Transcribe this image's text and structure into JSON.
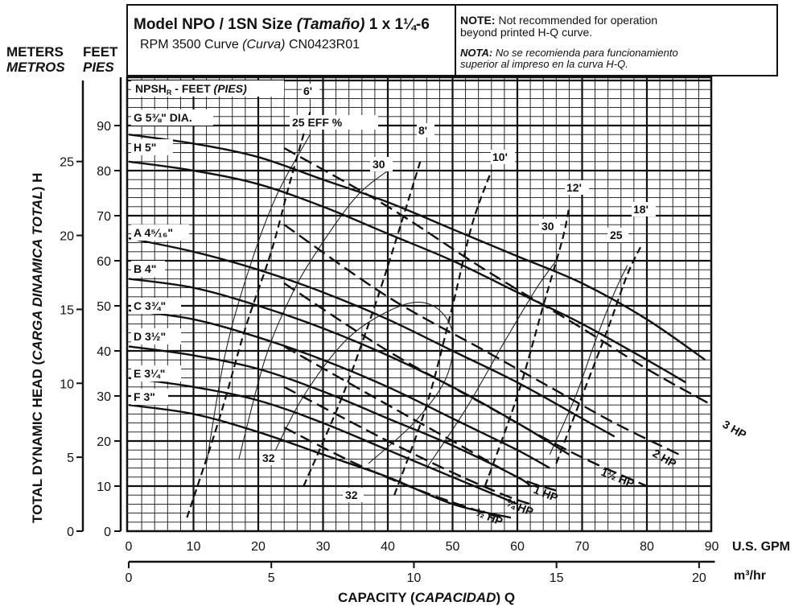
{
  "header": {
    "model_line_a": "Model NPO / 1SN Size ",
    "model_line_b": "(Tamaño)",
    "model_line_c": " 1 x 1¼-6",
    "rpm_line_a": "RPM 3500 Curve ",
    "rpm_line_b": "(Curva)",
    "rpm_line_c": " CN0423R01",
    "note_label": "NOTE:",
    "note_1": " Not recommended for operation",
    "note_2": "beyond printed H-Q curve.",
    "nota_label": "NOTA:",
    "nota_1": " No se recomienda para funcionamiento",
    "nota_2": "superior al impreso en la curva H-Q."
  },
  "axis_titles": {
    "meters": "METERS",
    "feet": "FEET",
    "metros": "METROS",
    "pies": "PIES",
    "y_title_a": "TOTAL DYNAMIC HEAD (",
    "y_title_b": "CARGA DINAMICA TOTAL",
    "y_title_c": ") H",
    "gpm_unit": "U.S. GPM",
    "m3_unit": "m³/hr",
    "x_title_a": "CAPACITY (",
    "x_title_b": "CAPACIDAD",
    "x_title_c": ") Q"
  },
  "chart_data": {
    "type": "line",
    "title": "Model NPO / 1SN Size (Tamaño) 1 x 1¼-6",
    "x_unit": "U.S. GPM",
    "y_unit": "FEET",
    "xlim": [
      0,
      90
    ],
    "ylim": [
      0,
      100
    ],
    "x_ticks": [
      0,
      10,
      20,
      30,
      40,
      50,
      60,
      70,
      80,
      90
    ],
    "y_ticks_feet": [
      0,
      10,
      20,
      30,
      40,
      50,
      60,
      70,
      80,
      90
    ],
    "y_ticks_meters": [
      0,
      5,
      10,
      15,
      20,
      25
    ],
    "x_ticks_m3hr": [
      0,
      5,
      10,
      15,
      20
    ],
    "grid": true,
    "impeller_curves": [
      {
        "label": "G 5⅜\" DIA.",
        "style": "solid",
        "x": [
          0,
          10,
          20,
          30,
          40,
          50,
          60,
          70,
          80,
          89
        ],
        "y": [
          88,
          86,
          83,
          78,
          73,
          67,
          61,
          55,
          47,
          38
        ]
      },
      {
        "label": "H 5\"",
        "style": "solid",
        "x": [
          0,
          10,
          20,
          30,
          40,
          50,
          60,
          70,
          80,
          86
        ],
        "y": [
          82,
          80,
          77,
          72,
          66,
          60,
          53,
          46,
          38,
          33
        ]
      },
      {
        "label": "A 4⁵⁄₁₆\"",
        "style": "solid",
        "x": [
          0,
          10,
          20,
          30,
          40,
          50,
          60,
          70,
          75
        ],
        "y": [
          65,
          62,
          58,
          53,
          47,
          40,
          33,
          25,
          21
        ]
      },
      {
        "label": "B 4\"",
        "style": "solid",
        "x": [
          0,
          10,
          20,
          30,
          40,
          50,
          60,
          68
        ],
        "y": [
          56,
          54,
          50,
          45,
          39,
          32,
          24,
          17
        ]
      },
      {
        "label": "C 3¾\"",
        "style": "solid",
        "x": [
          0,
          10,
          20,
          30,
          40,
          50,
          60,
          65
        ],
        "y": [
          49,
          47,
          43,
          38,
          32,
          25,
          18,
          14
        ]
      },
      {
        "label": "D 3½\"",
        "style": "solid",
        "x": [
          0,
          10,
          20,
          30,
          40,
          50,
          60,
          62
        ],
        "y": [
          41,
          39,
          36,
          31,
          25,
          19,
          12,
          10
        ]
      },
      {
        "label": "E 3¼\"",
        "style": "solid",
        "x": [
          0,
          10,
          20,
          30,
          40,
          50,
          60
        ],
        "y": [
          34,
          32,
          29,
          24,
          18,
          12,
          6
        ]
      },
      {
        "label": "F 3\"",
        "style": "solid",
        "x": [
          0,
          10,
          20,
          30,
          40,
          50,
          59
        ],
        "y": [
          28,
          26,
          22,
          17,
          12,
          6,
          3
        ]
      }
    ],
    "hp_curves": [
      {
        "label": "3 HP",
        "x": [
          24,
          40,
          55,
          70,
          80,
          90
        ],
        "y": [
          85,
          72,
          58,
          45,
          36,
          28
        ]
      },
      {
        "label": "2 HP",
        "x": [
          24,
          40,
          55,
          65,
          75,
          85
        ],
        "y": [
          68,
          52,
          40,
          32,
          24,
          17
        ]
      },
      {
        "label": "1½ HP",
        "x": [
          24,
          40,
          55,
          65,
          72,
          80
        ],
        "y": [
          55,
          40,
          28,
          20,
          15,
          10
        ]
      },
      {
        "label": "1 HP",
        "x": [
          24,
          40,
          50,
          60,
          66
        ],
        "y": [
          41,
          28,
          20,
          12,
          9
        ]
      },
      {
        "label": "¾ HP",
        "x": [
          24,
          40,
          50,
          58,
          62
        ],
        "y": [
          32,
          20,
          13,
          8,
          6
        ]
      },
      {
        "label": "½ HP",
        "x": [
          24,
          35,
          45,
          55,
          58
        ],
        "y": [
          23,
          15,
          9,
          4,
          3
        ]
      }
    ],
    "npshr_curves": [
      {
        "label": "6'",
        "x": [
          9,
          14,
          18,
          22,
          25,
          28
        ],
        "y": [
          3,
          25,
          45,
          62,
          78,
          93
        ]
      },
      {
        "label": "8'",
        "x": [
          27,
          33,
          38,
          42,
          45
        ],
        "y": [
          10,
          30,
          50,
          68,
          82
        ]
      },
      {
        "label": "10'",
        "x": [
          41,
          46,
          50,
          53,
          56
        ],
        "y": [
          8,
          28,
          50,
          68,
          80
        ]
      },
      {
        "label": "12'",
        "x": [
          55,
          60,
          64,
          67,
          68
        ],
        "y": [
          10,
          30,
          50,
          65,
          72
        ]
      },
      {
        "label": "18'",
        "x": [
          66,
          70,
          74,
          77,
          79
        ],
        "y": [
          15,
          30,
          45,
          57,
          63
        ]
      }
    ],
    "efficiency_curves": [
      {
        "label": "25",
        "x": [
          12,
          15,
          19,
          23,
          28
        ],
        "y": [
          15,
          40,
          60,
          75,
          88
        ]
      },
      {
        "label": "30",
        "x": [
          17,
          21,
          25,
          29,
          35,
          40
        ],
        "y": [
          16,
          38,
          52,
          62,
          74,
          80
        ]
      },
      {
        "label": "32",
        "x": [
          22,
          27,
          34,
          42,
          47,
          50,
          49,
          44,
          37
        ],
        "y": [
          16,
          30,
          43,
          50,
          50,
          44,
          34,
          24,
          15
        ]
      },
      {
        "label": "30",
        "x": [
          46,
          52,
          58,
          63,
          66
        ],
        "y": [
          14,
          27,
          42,
          54,
          60
        ]
      },
      {
        "label": "25",
        "x": [
          65,
          69,
          72,
          75,
          77
        ],
        "y": [
          17,
          30,
          42,
          53,
          59
        ]
      }
    ]
  },
  "curve_labels": {
    "npshr_title_a": "NPSH",
    "npshr_title_sub": "R",
    "npshr_title_b": " - FEET ",
    "npshr_title_c": "(PIES)",
    "eff_title": "25  EFF %",
    "eff_30a": "30",
    "eff_30b": "30",
    "eff_25b": "25",
    "eff_32a": "32",
    "eff_32b": "32",
    "npsh_6": "6'",
    "npsh_8": "8'",
    "npsh_10": "10'",
    "npsh_12": "12'",
    "npsh_18": "18'",
    "imp_g": "G 5⅜\" DIA.",
    "imp_h": "H 5\"",
    "imp_a": "A 4⁵⁄₁₆\"",
    "imp_b": "B 4\"",
    "imp_c": "C 3¾\"",
    "imp_d": "D 3½\"",
    "imp_e": "E 3¼\"",
    "imp_f": "F 3\"",
    "hp_3": "3 HP",
    "hp_2": "2 HP",
    "hp_15": "1½ HP",
    "hp_1": "1 HP",
    "hp_34": "¾ HP",
    "hp_12": "½ HP"
  }
}
